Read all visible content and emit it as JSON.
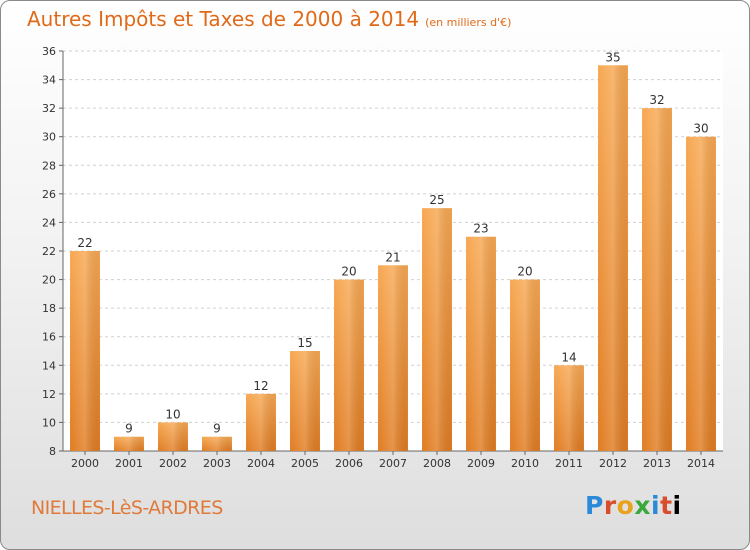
{
  "header": {
    "title": "Autres Impôts et Taxes de 2000 à 2014",
    "subtitle": "(en milliers d'€)"
  },
  "footer": {
    "commune": "NIELLES-LèS-ARDRES",
    "logo_letters": [
      "P",
      "r",
      "o",
      "x",
      "i",
      "t",
      "i"
    ]
  },
  "colors": {
    "bar_light": "#f7a852",
    "bar_dark": "#e07c22",
    "title": "#e06a18"
  },
  "chart_data": {
    "type": "bar",
    "title": "Autres Impôts et Taxes de 2000 à 2014",
    "subtitle": "(en milliers d'€)",
    "xlabel": "",
    "ylabel": "",
    "categories": [
      "2000",
      "2001",
      "2002",
      "2003",
      "2004",
      "2005",
      "2006",
      "2007",
      "2008",
      "2009",
      "2010",
      "2011",
      "2012",
      "2013",
      "2014"
    ],
    "values": [
      22,
      9,
      10,
      9,
      12,
      15,
      20,
      21,
      25,
      23,
      20,
      14,
      35,
      32,
      30
    ],
    "ylim": [
      8,
      36
    ],
    "yticks": [
      8,
      10,
      12,
      14,
      16,
      18,
      20,
      22,
      24,
      26,
      28,
      30,
      32,
      34,
      36
    ],
    "grid": true
  }
}
